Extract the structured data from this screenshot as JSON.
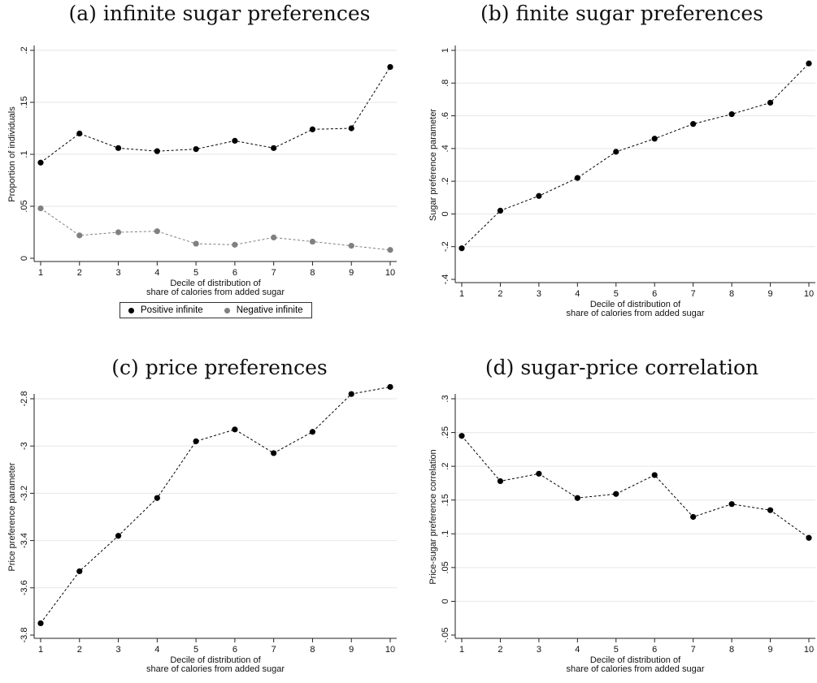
{
  "chart_data": [
    {
      "id": "a",
      "type": "line",
      "title": "(a) infinite sugar preferences",
      "xlabel": [
        "Decile of distribution of",
        "share of calories from added sugar"
      ],
      "ylabel": "Proportion of individuals",
      "x": [
        1,
        2,
        3,
        4,
        5,
        6,
        7,
        8,
        9,
        10
      ],
      "xticks": [
        "1",
        "2",
        "3",
        "4",
        "5",
        "6",
        "7",
        "8",
        "9",
        "10"
      ],
      "ylim": [
        0,
        0.2
      ],
      "yticks": [
        0,
        0.05,
        0.1,
        0.15,
        0.2
      ],
      "yticklabels": [
        "0",
        ".05",
        ".1",
        ".15",
        ".2"
      ],
      "grid": true,
      "legend_position": "bottom",
      "series": [
        {
          "name": "Positive infinite",
          "color": "#000000",
          "values": [
            0.092,
            0.12,
            0.106,
            0.103,
            0.105,
            0.113,
            0.106,
            0.124,
            0.125,
            0.184
          ]
        },
        {
          "name": "Negative infinite",
          "color": "#808080",
          "values": [
            0.048,
            0.022,
            0.025,
            0.026,
            0.014,
            0.013,
            0.02,
            0.016,
            0.012,
            0.008
          ]
        }
      ]
    },
    {
      "id": "b",
      "type": "line",
      "title": "(b) finite sugar preferences",
      "xlabel": [
        "Decile of distribution of",
        "share of calories from added sugar"
      ],
      "ylabel": "Sugar preference parameter",
      "x": [
        1,
        2,
        3,
        4,
        5,
        6,
        7,
        8,
        9,
        10
      ],
      "xticks": [
        "1",
        "2",
        "3",
        "4",
        "5",
        "6",
        "7",
        "8",
        "9",
        "10"
      ],
      "ylim": [
        -0.4,
        1.0
      ],
      "yticks": [
        -0.4,
        -0.2,
        0,
        0.2,
        0.4,
        0.6,
        0.8,
        1.0
      ],
      "yticklabels": [
        "-.4",
        "-.2",
        "0",
        ".2",
        ".4",
        ".6",
        ".8",
        "1"
      ],
      "grid": true,
      "series": [
        {
          "color": "#000000",
          "values": [
            -0.21,
            0.02,
            0.11,
            0.22,
            0.38,
            0.46,
            0.55,
            0.61,
            0.68,
            0.92
          ]
        }
      ]
    },
    {
      "id": "c",
      "type": "line",
      "title": "(c) price preferences",
      "xlabel": [
        "Decile of distribution of",
        "share of calories from added sugar"
      ],
      "ylabel": "Price preference parameter",
      "x": [
        1,
        2,
        3,
        4,
        5,
        6,
        7,
        8,
        9,
        10
      ],
      "xticks": [
        "1",
        "2",
        "3",
        "4",
        "5",
        "6",
        "7",
        "8",
        "9",
        "10"
      ],
      "ylim": [
        -3.8,
        -2.8
      ],
      "yticks": [
        -3.8,
        -3.6,
        -3.4,
        -3.2,
        -3.0,
        -2.8
      ],
      "yticklabels": [
        "-3.8",
        "-3.6",
        "-3.4",
        "-3.2",
        "-3",
        "-2.8"
      ],
      "grid": true,
      "series": [
        {
          "color": "#000000",
          "values": [
            -3.75,
            -3.53,
            -3.38,
            -3.22,
            -2.98,
            -2.93,
            -3.03,
            -2.94,
            -2.78,
            -2.75
          ]
        }
      ]
    },
    {
      "id": "d",
      "type": "line",
      "title": "(d) sugar-price correlation",
      "xlabel": [
        "Decile of distribution of",
        "share of calories from added sugar"
      ],
      "ylabel": "Price-sugar preference correlation",
      "x": [
        1,
        2,
        3,
        4,
        5,
        6,
        7,
        8,
        9,
        10
      ],
      "xticks": [
        "1",
        "2",
        "3",
        "4",
        "5",
        "6",
        "7",
        "8",
        "9",
        "10"
      ],
      "ylim": [
        -0.05,
        0.3
      ],
      "yticks": [
        -0.05,
        0,
        0.05,
        0.1,
        0.15,
        0.2,
        0.25,
        0.3
      ],
      "yticklabels": [
        "-.05",
        "0",
        ".05",
        ".1",
        ".15",
        ".2",
        ".25",
        ".3"
      ],
      "grid": true,
      "series": [
        {
          "color": "#000000",
          "values": [
            0.245,
            0.178,
            0.189,
            0.153,
            0.159,
            0.187,
            0.125,
            0.144,
            0.135,
            0.094
          ]
        }
      ]
    }
  ]
}
